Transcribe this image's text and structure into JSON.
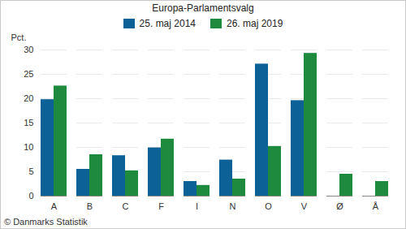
{
  "chart_data": {
    "type": "bar",
    "title": "Europa-Parlamentsvalg",
    "y_label": "Pct.",
    "caption": "© Danmarks Statistik",
    "categories": [
      "A",
      "B",
      "C",
      "F",
      "I",
      "N",
      "O",
      "V",
      "Ø",
      "Å"
    ],
    "series": [
      {
        "name": "25. maj 2014",
        "color": "#0c6196",
        "values": [
          19.8,
          5.5,
          8.3,
          9.9,
          3.0,
          7.4,
          27.1,
          19.6,
          null,
          null
        ]
      },
      {
        "name": "26. maj 2019",
        "color": "#1e8a3e",
        "values": [
          22.6,
          8.5,
          5.2,
          11.7,
          2.2,
          3.5,
          10.2,
          29.3,
          4.5,
          3.0
        ]
      }
    ],
    "ylim": [
      0,
      30
    ],
    "yticks": [
      0,
      5,
      10,
      15,
      20,
      25,
      30
    ],
    "grid": true,
    "legend": "top"
  }
}
